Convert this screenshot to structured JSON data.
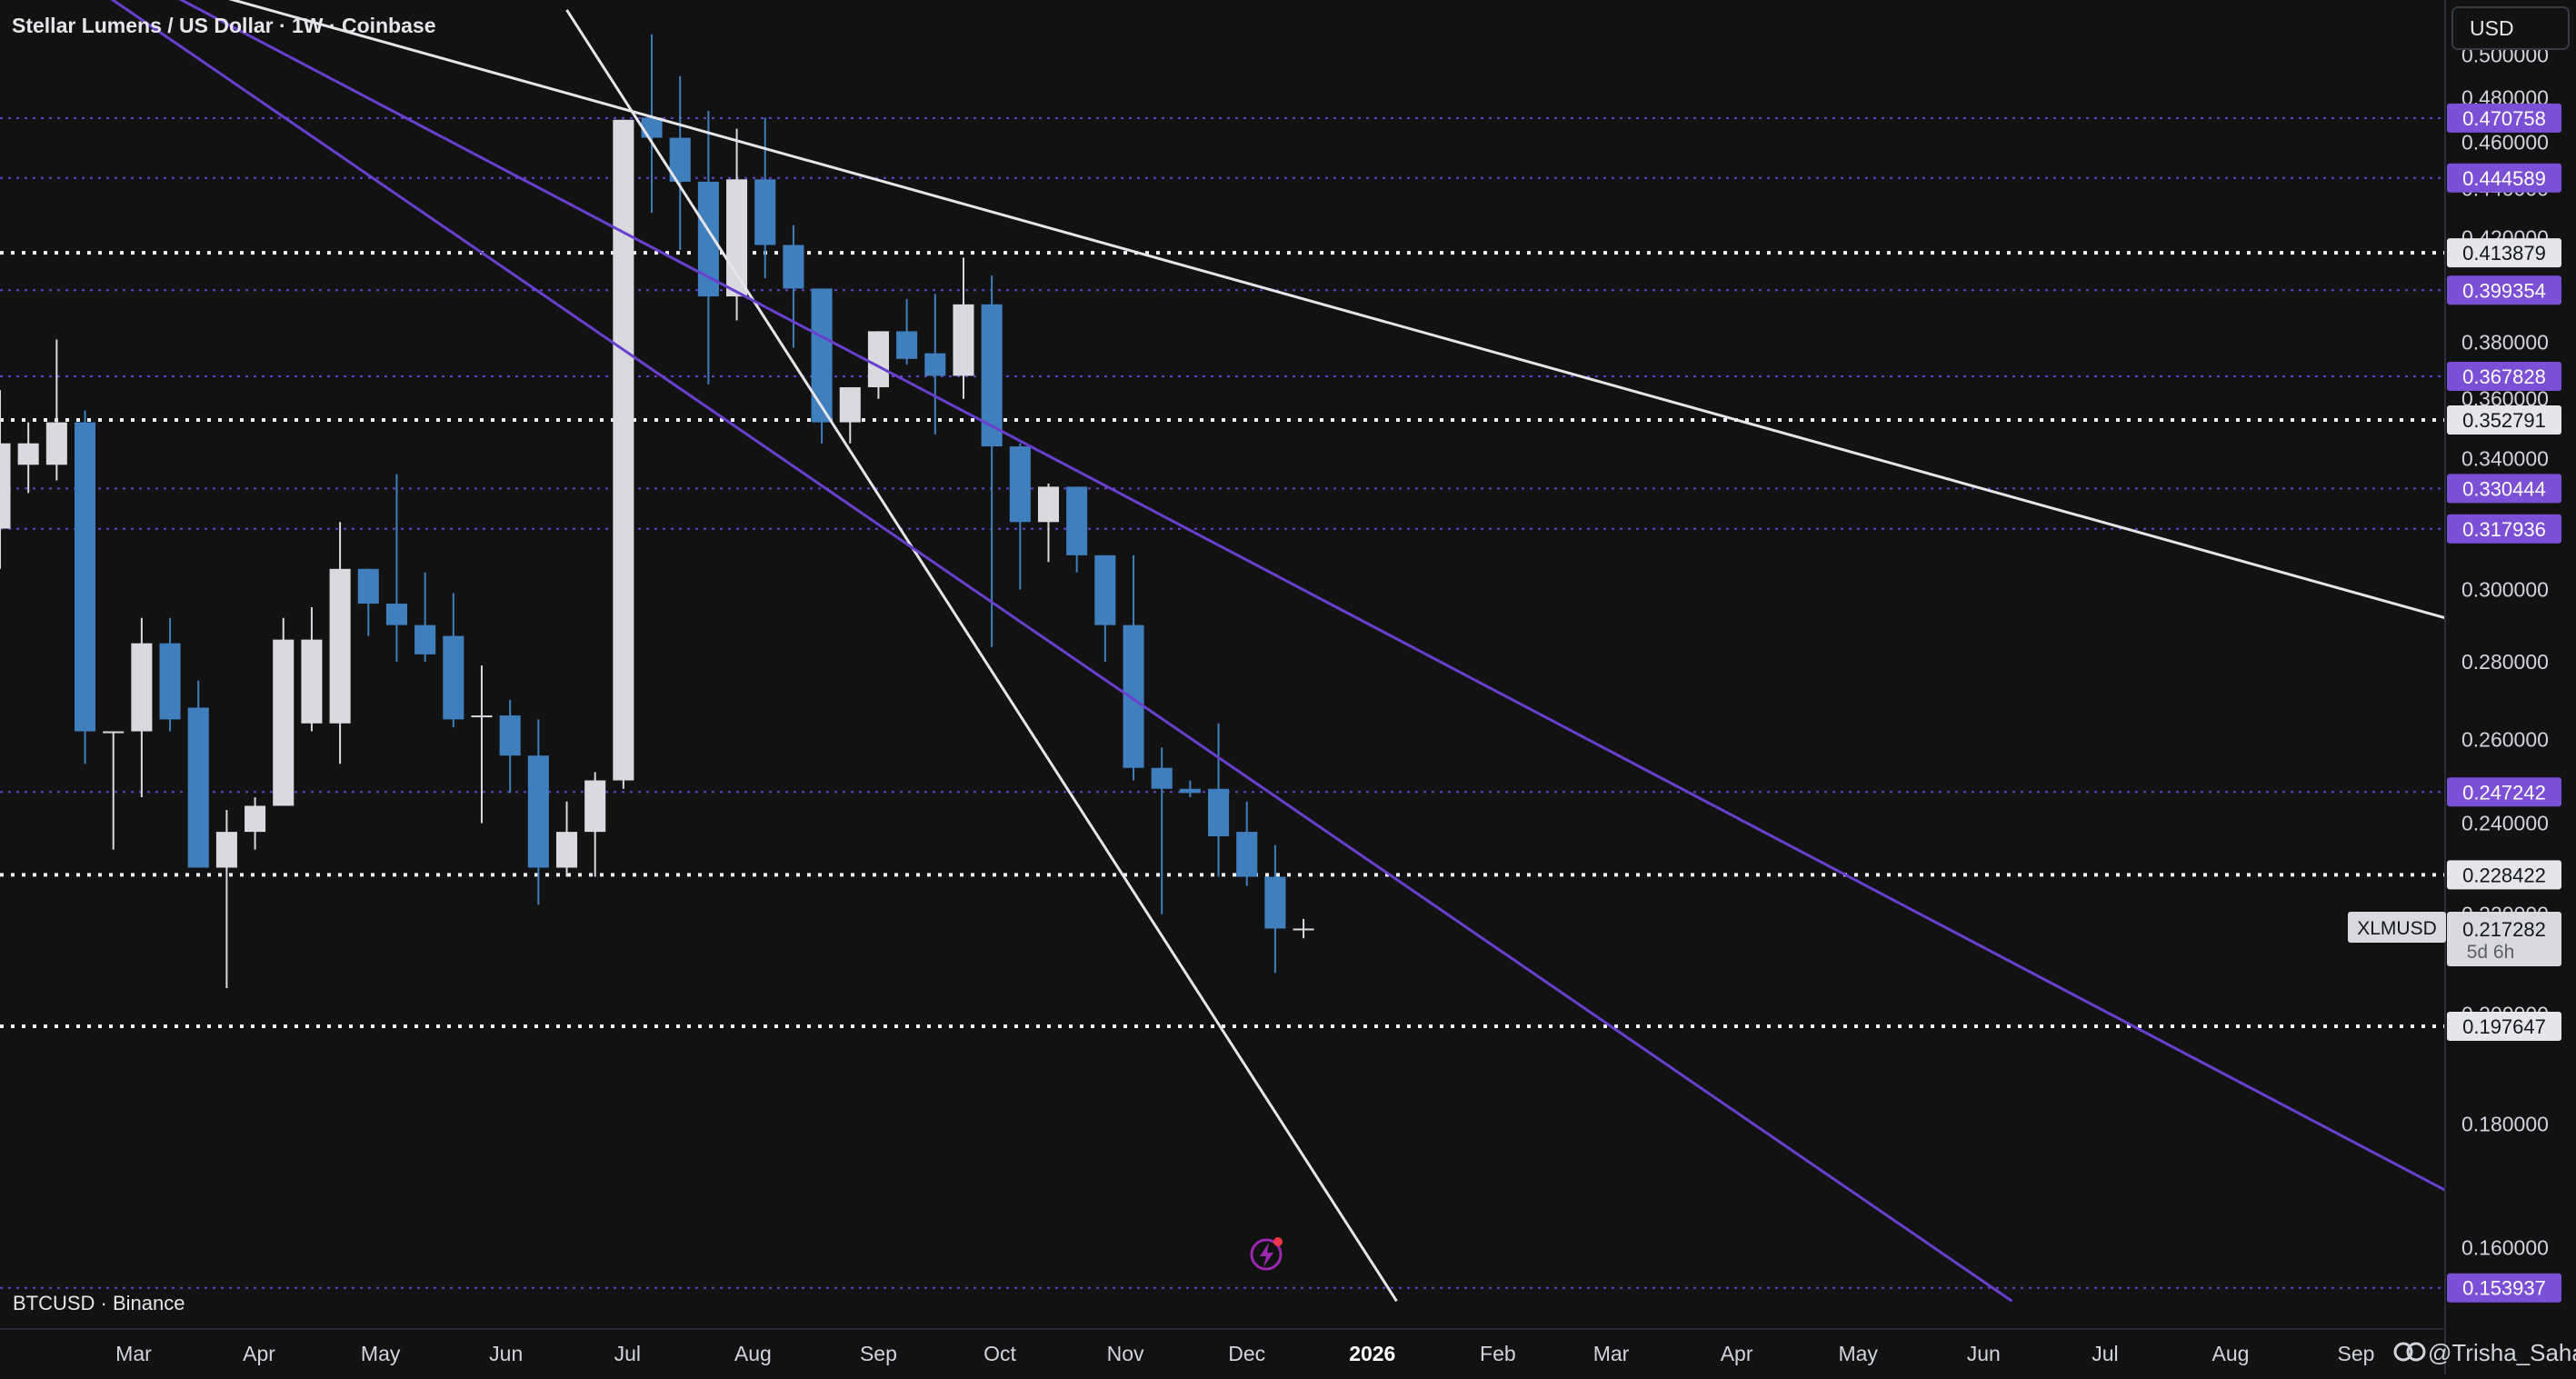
{
  "header": {
    "title": "Stellar Lumens / US Dollar · 1W · Coinbase",
    "currency_button": "USD"
  },
  "overlay": {
    "label": "BTCUSD · Binance"
  },
  "watermark": "@Trisha_Saha",
  "colors": {
    "background": "#121213",
    "up_candle": "#d9d9df",
    "down_candle": "#3f7fbd",
    "purple": "#6a3fd0",
    "purple_label": "#7b4fd6",
    "white_line": "#e6e6ea",
    "axis_text": "#d1d4dc",
    "grid_border": "#2a2e39"
  },
  "chart_data": {
    "type": "candlestick",
    "title": "Stellar Lumens / US Dollar · 1W · Coinbase",
    "symbol": "XLMUSD",
    "interval": "1W",
    "exchange": "Coinbase",
    "y_scale": "log",
    "ylim": [
      0.148,
      0.527
    ],
    "y_ticks": [
      0.16,
      0.18,
      0.2,
      0.22,
      0.24,
      0.26,
      0.28,
      0.3,
      0.32,
      0.34,
      0.36,
      0.38,
      0.4,
      0.42,
      0.44,
      0.46,
      0.48,
      0.5
    ],
    "y_tick_labels": [
      "0.160000",
      "0.180000",
      "0.200000",
      "0.220000",
      "0.240000",
      "0.260000",
      "0.280000",
      "0.300000",
      "0.320000",
      "0.340000",
      "0.360000",
      "0.380000",
      "0.400000",
      "0.420000",
      "0.440000",
      "0.460000",
      "0.480000",
      "0.500000"
    ],
    "x_labels": [
      {
        "label": "Mar",
        "date": "2025-03-01"
      },
      {
        "label": "Apr",
        "date": "2025-04-01"
      },
      {
        "label": "May",
        "date": "2025-05-01"
      },
      {
        "label": "Jun",
        "date": "2025-06-01"
      },
      {
        "label": "Jul",
        "date": "2025-07-01"
      },
      {
        "label": "Aug",
        "date": "2025-08-01"
      },
      {
        "label": "Sep",
        "date": "2025-09-01"
      },
      {
        "label": "Oct",
        "date": "2025-10-01"
      },
      {
        "label": "Nov",
        "date": "2025-11-01"
      },
      {
        "label": "Dec",
        "date": "2025-12-01"
      },
      {
        "label": "2026",
        "date": "2026-01-01"
      },
      {
        "label": "Feb",
        "date": "2026-02-01"
      },
      {
        "label": "Mar",
        "date": "2026-03-01"
      },
      {
        "label": "Apr",
        "date": "2026-04-01"
      },
      {
        "label": "May",
        "date": "2026-05-01"
      },
      {
        "label": "Jun",
        "date": "2026-06-01"
      },
      {
        "label": "Jul",
        "date": "2026-07-01"
      },
      {
        "label": "Aug",
        "date": "2026-08-01"
      },
      {
        "label": "Sep",
        "date": "2026-09-01"
      }
    ],
    "x_range": [
      "2025-01-27",
      "2026-09-23"
    ],
    "candles": [
      {
        "date": "2025-01-27",
        "open": 0.318,
        "high": 0.363,
        "low": 0.306,
        "close": 0.345
      },
      {
        "date": "2025-02-03",
        "open": 0.338,
        "high": 0.352,
        "low": 0.329,
        "close": 0.345
      },
      {
        "date": "2025-02-10",
        "open": 0.338,
        "high": 0.381,
        "low": 0.333,
        "close": 0.352
      },
      {
        "date": "2025-02-17",
        "open": 0.352,
        "high": 0.356,
        "low": 0.254,
        "close": 0.262
      },
      {
        "date": "2025-02-24",
        "open": 0.262,
        "high": 0.262,
        "low": 0.234,
        "close": 0.262
      },
      {
        "date": "2025-03-03",
        "open": 0.262,
        "high": 0.292,
        "low": 0.246,
        "close": 0.285
      },
      {
        "date": "2025-03-10",
        "open": 0.285,
        "high": 0.292,
        "low": 0.262,
        "close": 0.265
      },
      {
        "date": "2025-03-17",
        "open": 0.268,
        "high": 0.275,
        "low": 0.23,
        "close": 0.23
      },
      {
        "date": "2025-03-24",
        "open": 0.23,
        "high": 0.243,
        "low": 0.205,
        "close": 0.238
      },
      {
        "date": "2025-03-31",
        "open": 0.238,
        "high": 0.246,
        "low": 0.234,
        "close": 0.244
      },
      {
        "date": "2025-04-07",
        "open": 0.244,
        "high": 0.292,
        "low": 0.244,
        "close": 0.286
      },
      {
        "date": "2025-04-14",
        "open": 0.264,
        "high": 0.295,
        "low": 0.262,
        "close": 0.286
      },
      {
        "date": "2025-04-21",
        "open": 0.264,
        "high": 0.32,
        "low": 0.254,
        "close": 0.306
      },
      {
        "date": "2025-04-28",
        "open": 0.306,
        "high": 0.306,
        "low": 0.287,
        "close": 0.296
      },
      {
        "date": "2025-05-05",
        "open": 0.296,
        "high": 0.335,
        "low": 0.28,
        "close": 0.29
      },
      {
        "date": "2025-05-12",
        "open": 0.29,
        "high": 0.305,
        "low": 0.28,
        "close": 0.282
      },
      {
        "date": "2025-05-19",
        "open": 0.287,
        "high": 0.299,
        "low": 0.263,
        "close": 0.265
      },
      {
        "date": "2025-05-26",
        "open": 0.266,
        "high": 0.279,
        "low": 0.24,
        "close": 0.266
      },
      {
        "date": "2025-06-02",
        "open": 0.266,
        "high": 0.27,
        "low": 0.247,
        "close": 0.256
      },
      {
        "date": "2025-06-09",
        "open": 0.256,
        "high": 0.265,
        "low": 0.222,
        "close": 0.23
      },
      {
        "date": "2025-06-16",
        "open": 0.23,
        "high": 0.245,
        "low": 0.228,
        "close": 0.238
      },
      {
        "date": "2025-06-23",
        "open": 0.238,
        "high": 0.252,
        "low": 0.228,
        "close": 0.25
      },
      {
        "date": "2025-06-30",
        "open": 0.25,
        "high": 0.47,
        "low": 0.248,
        "close": 0.47
      },
      {
        "date": "2025-07-07",
        "open": 0.471,
        "high": 0.51,
        "low": 0.43,
        "close": 0.462
      },
      {
        "date": "2025-07-14",
        "open": 0.462,
        "high": 0.49,
        "low": 0.415,
        "close": 0.443
      },
      {
        "date": "2025-07-21",
        "open": 0.443,
        "high": 0.474,
        "low": 0.365,
        "close": 0.397
      },
      {
        "date": "2025-07-28",
        "open": 0.397,
        "high": 0.466,
        "low": 0.388,
        "close": 0.444
      },
      {
        "date": "2025-08-04",
        "open": 0.444,
        "high": 0.471,
        "low": 0.404,
        "close": 0.417
      },
      {
        "date": "2025-08-11",
        "open": 0.417,
        "high": 0.425,
        "low": 0.378,
        "close": 0.4
      },
      {
        "date": "2025-08-18",
        "open": 0.4,
        "high": 0.4,
        "low": 0.345,
        "close": 0.352
      },
      {
        "date": "2025-08-25",
        "open": 0.352,
        "high": 0.364,
        "low": 0.345,
        "close": 0.364
      },
      {
        "date": "2025-09-01",
        "open": 0.364,
        "high": 0.384,
        "low": 0.36,
        "close": 0.384
      },
      {
        "date": "2025-09-08",
        "open": 0.384,
        "high": 0.396,
        "low": 0.372,
        "close": 0.374
      },
      {
        "date": "2025-09-15",
        "open": 0.376,
        "high": 0.398,
        "low": 0.348,
        "close": 0.368
      },
      {
        "date": "2025-09-22",
        "open": 0.368,
        "high": 0.412,
        "low": 0.36,
        "close": 0.394
      },
      {
        "date": "2025-09-29",
        "open": 0.394,
        "high": 0.405,
        "low": 0.284,
        "close": 0.344
      },
      {
        "date": "2025-10-06",
        "open": 0.344,
        "high": 0.345,
        "low": 0.3,
        "close": 0.32
      },
      {
        "date": "2025-10-13",
        "open": 0.32,
        "high": 0.332,
        "low": 0.308,
        "close": 0.331
      },
      {
        "date": "2025-10-20",
        "open": 0.331,
        "high": 0.331,
        "low": 0.305,
        "close": 0.31
      },
      {
        "date": "2025-10-27",
        "open": 0.31,
        "high": 0.31,
        "low": 0.28,
        "close": 0.29
      },
      {
        "date": "2025-11-03",
        "open": 0.29,
        "high": 0.31,
        "low": 0.25,
        "close": 0.253
      },
      {
        "date": "2025-11-10",
        "open": 0.253,
        "high": 0.258,
        "low": 0.22,
        "close": 0.248
      },
      {
        "date": "2025-11-17",
        "open": 0.248,
        "high": 0.25,
        "low": 0.246,
        "close": 0.247
      },
      {
        "date": "2025-11-24",
        "open": 0.248,
        "high": 0.264,
        "low": 0.228,
        "close": 0.237
      },
      {
        "date": "2025-12-01",
        "open": 0.238,
        "high": 0.245,
        "low": 0.226,
        "close": 0.228
      },
      {
        "date": "2025-12-08",
        "open": 0.228,
        "high": 0.235,
        "low": 0.208,
        "close": 0.217
      },
      {
        "date": "2025-12-15",
        "open": 0.217,
        "high": 0.219,
        "low": 0.215,
        "close": 0.217
      }
    ],
    "horizontal_levels": [
      {
        "label": "0.470758",
        "value": 0.470758,
        "style": "purple"
      },
      {
        "label": "0.444589",
        "value": 0.444589,
        "style": "purple"
      },
      {
        "label": "0.413879",
        "value": 0.413879,
        "style": "white"
      },
      {
        "label": "0.399354",
        "value": 0.399354,
        "style": "purple"
      },
      {
        "label": "0.367828",
        "value": 0.367828,
        "style": "purple"
      },
      {
        "label": "0.352791",
        "value": 0.352791,
        "style": "white"
      },
      {
        "label": "0.330444",
        "value": 0.330444,
        "style": "purple"
      },
      {
        "label": "0.317936",
        "value": 0.317936,
        "style": "purple"
      },
      {
        "label": "0.247242",
        "value": 0.247242,
        "style": "purple"
      },
      {
        "label": "0.228422",
        "value": 0.228422,
        "style": "white"
      },
      {
        "label": "0.197647",
        "value": 0.197647,
        "style": "white"
      },
      {
        "label": "0.153937",
        "value": 0.153937,
        "style": "purple"
      }
    ],
    "trendlines": [
      {
        "style": "white",
        "from": {
          "date": "2025-01-04",
          "value": 0.575
        },
        "to": {
          "date": "2026-09-23",
          "value": 0.292
        }
      },
      {
        "style": "white",
        "from": {
          "date": "2025-06-16",
          "value": 0.522
        },
        "to": {
          "date": "2026-01-07",
          "value": 0.152
        }
      },
      {
        "style": "purple",
        "from": {
          "date": "2025-01-22",
          "value": 0.575
        },
        "to": {
          "date": "2026-06-08",
          "value": 0.152
        }
      },
      {
        "style": "purple",
        "from": {
          "date": "2025-01-29",
          "value": 0.575
        },
        "to": {
          "date": "2026-09-23",
          "value": 0.169
        }
      }
    ],
    "current_price": {
      "symbol": "XLMUSD",
      "value": 0.217282,
      "label": "0.217282",
      "countdown": "5d 6h"
    }
  }
}
